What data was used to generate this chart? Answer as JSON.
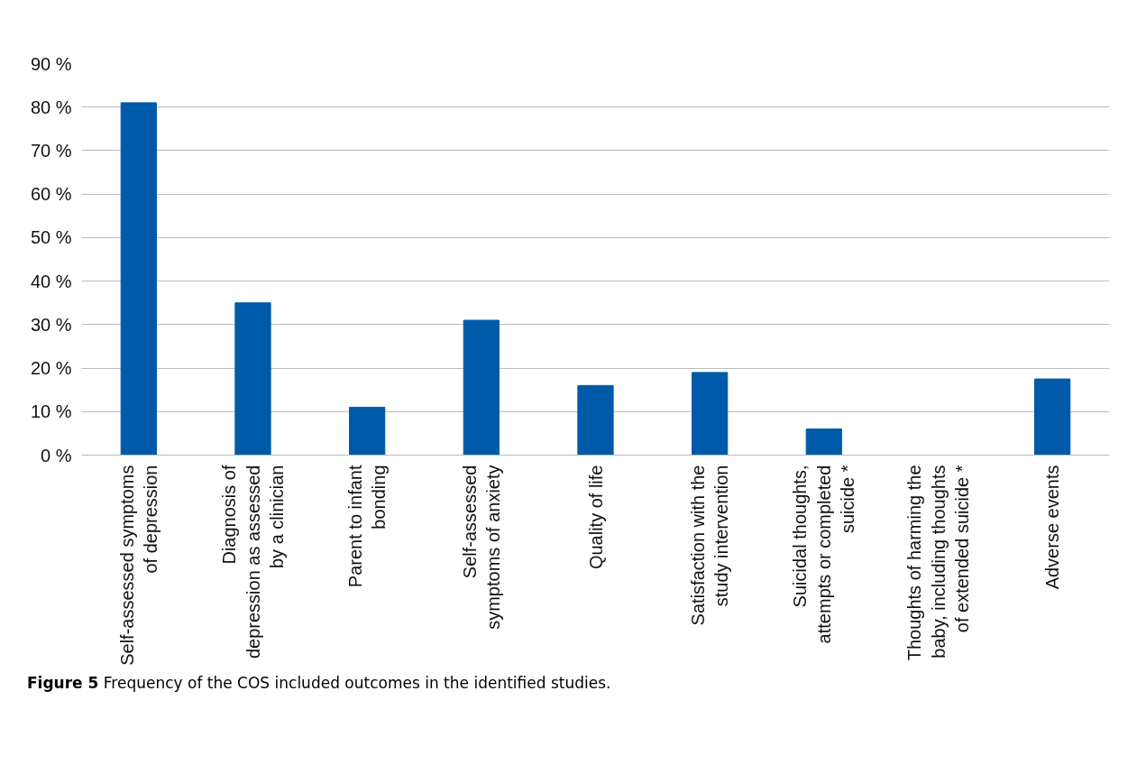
{
  "chart_data": {
    "type": "bar",
    "categories": [
      "Self-assessed symptoms\nof depression",
      "Diagnosis of\ndepression as assessed\nby a clinician",
      "Parent to infant\nbonding",
      "Self-assessed\nsymptoms of anxiety",
      "Quality of life",
      "Satisfaction with the\nstudy intervention",
      "Suicidal thoughts,\nattempts or completed\nsuicide *",
      "Thoughts of harming the\nbaby, including thoughts\nof extended suicide *",
      "Adverse events"
    ],
    "values": [
      81,
      35,
      11,
      31,
      16,
      19,
      6,
      0,
      17.5
    ],
    "color": "#005aaa",
    "ylim": [
      0,
      90
    ],
    "yticks": [
      {
        "value": 0,
        "label": "0 %"
      },
      {
        "value": 10,
        "label": "10 %"
      },
      {
        "value": 20,
        "label": "20 %"
      },
      {
        "value": 30,
        "label": "30 %"
      },
      {
        "value": 40,
        "label": "40 %"
      },
      {
        "value": 50,
        "label": "50 %"
      },
      {
        "value": 60,
        "label": "60 %"
      },
      {
        "value": 70,
        "label": "70 %"
      },
      {
        "value": 80,
        "label": "80 %"
      },
      {
        "value": 90,
        "label": "90 %"
      }
    ],
    "grid": "y",
    "annotations": [
      "Figure 5 Frequency of the COS included outcomes in the identified studies."
    ]
  }
}
